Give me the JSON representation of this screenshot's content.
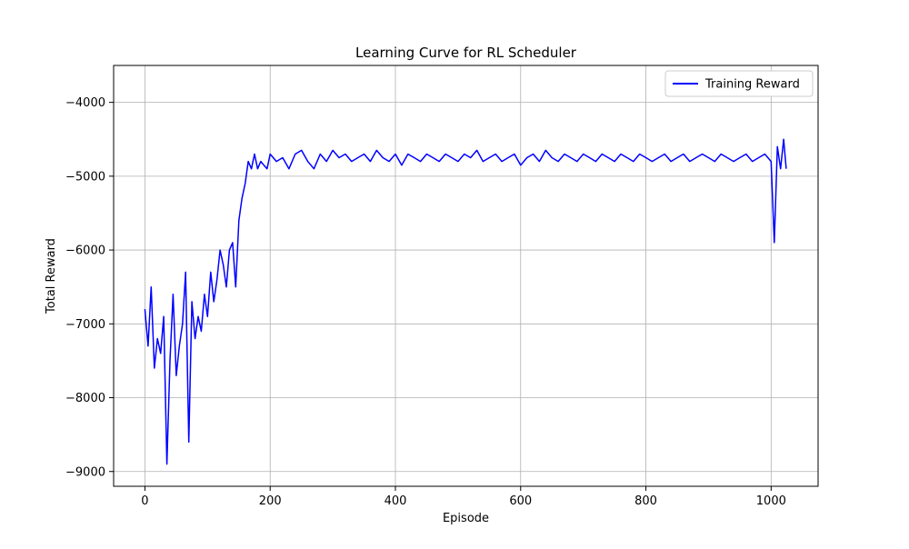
{
  "chart_data": {
    "type": "line",
    "title": "Learning Curve for RL Scheduler",
    "xlabel": "Episode",
    "ylabel": "Total Reward",
    "xlim": [
      -50,
      1075
    ],
    "ylim": [
      -9200,
      -3500
    ],
    "xticks": [
      0,
      200,
      400,
      600,
      800,
      1000
    ],
    "yticks": [
      -9000,
      -8000,
      -7000,
      -6000,
      -5000,
      -4000
    ],
    "xtick_labels": [
      "0",
      "200",
      "400",
      "600",
      "800",
      "1000"
    ],
    "ytick_labels": [
      "−9000",
      "−8000",
      "−7000",
      "−6000",
      "−5000",
      "−4000"
    ],
    "grid": true,
    "legend_position": "top-right",
    "series": [
      {
        "name": "Training Reward",
        "color": "#0000ff",
        "x": [
          0,
          5,
          10,
          15,
          20,
          25,
          30,
          35,
          40,
          45,
          50,
          55,
          60,
          65,
          70,
          75,
          80,
          85,
          90,
          95,
          100,
          105,
          110,
          115,
          120,
          125,
          130,
          135,
          140,
          145,
          150,
          155,
          160,
          165,
          170,
          175,
          180,
          185,
          190,
          195,
          200,
          210,
          220,
          230,
          240,
          250,
          260,
          270,
          280,
          290,
          300,
          310,
          320,
          330,
          340,
          350,
          360,
          370,
          380,
          390,
          400,
          410,
          420,
          430,
          440,
          450,
          460,
          470,
          480,
          490,
          500,
          510,
          520,
          530,
          540,
          550,
          560,
          570,
          580,
          590,
          600,
          610,
          620,
          630,
          640,
          650,
          660,
          670,
          680,
          690,
          700,
          710,
          720,
          730,
          740,
          750,
          760,
          770,
          780,
          790,
          800,
          810,
          820,
          830,
          840,
          850,
          860,
          870,
          880,
          890,
          900,
          910,
          920,
          930,
          940,
          950,
          960,
          970,
          980,
          990,
          1000,
          1005,
          1010,
          1015,
          1020,
          1024
        ],
        "y": [
          -6800,
          -7300,
          -6500,
          -7600,
          -7200,
          -7400,
          -6900,
          -8900,
          -7500,
          -6600,
          -7700,
          -7300,
          -7000,
          -6300,
          -8600,
          -6700,
          -7200,
          -6900,
          -7100,
          -6600,
          -6900,
          -6300,
          -6700,
          -6400,
          -6000,
          -6200,
          -6500,
          -6000,
          -5900,
          -6500,
          -5600,
          -5300,
          -5100,
          -4800,
          -4900,
          -4700,
          -4900,
          -4800,
          -4850,
          -4900,
          -4700,
          -4800,
          -4750,
          -4900,
          -4700,
          -4650,
          -4800,
          -4900,
          -4700,
          -4800,
          -4650,
          -4750,
          -4700,
          -4800,
          -4750,
          -4700,
          -4800,
          -4650,
          -4750,
          -4800,
          -4700,
          -4850,
          -4700,
          -4750,
          -4800,
          -4700,
          -4750,
          -4800,
          -4700,
          -4750,
          -4800,
          -4700,
          -4750,
          -4650,
          -4800,
          -4750,
          -4700,
          -4800,
          -4750,
          -4700,
          -4850,
          -4750,
          -4700,
          -4800,
          -4650,
          -4750,
          -4800,
          -4700,
          -4750,
          -4800,
          -4700,
          -4750,
          -4800,
          -4700,
          -4750,
          -4800,
          -4700,
          -4750,
          -4800,
          -4700,
          -4750,
          -4800,
          -4750,
          -4700,
          -4800,
          -4750,
          -4700,
          -4800,
          -4750,
          -4700,
          -4750,
          -4800,
          -4700,
          -4750,
          -4800,
          -4750,
          -4700,
          -4800,
          -4750,
          -4700,
          -4800,
          -5900,
          -4600,
          -4900,
          -4500,
          -4900
        ]
      }
    ]
  }
}
